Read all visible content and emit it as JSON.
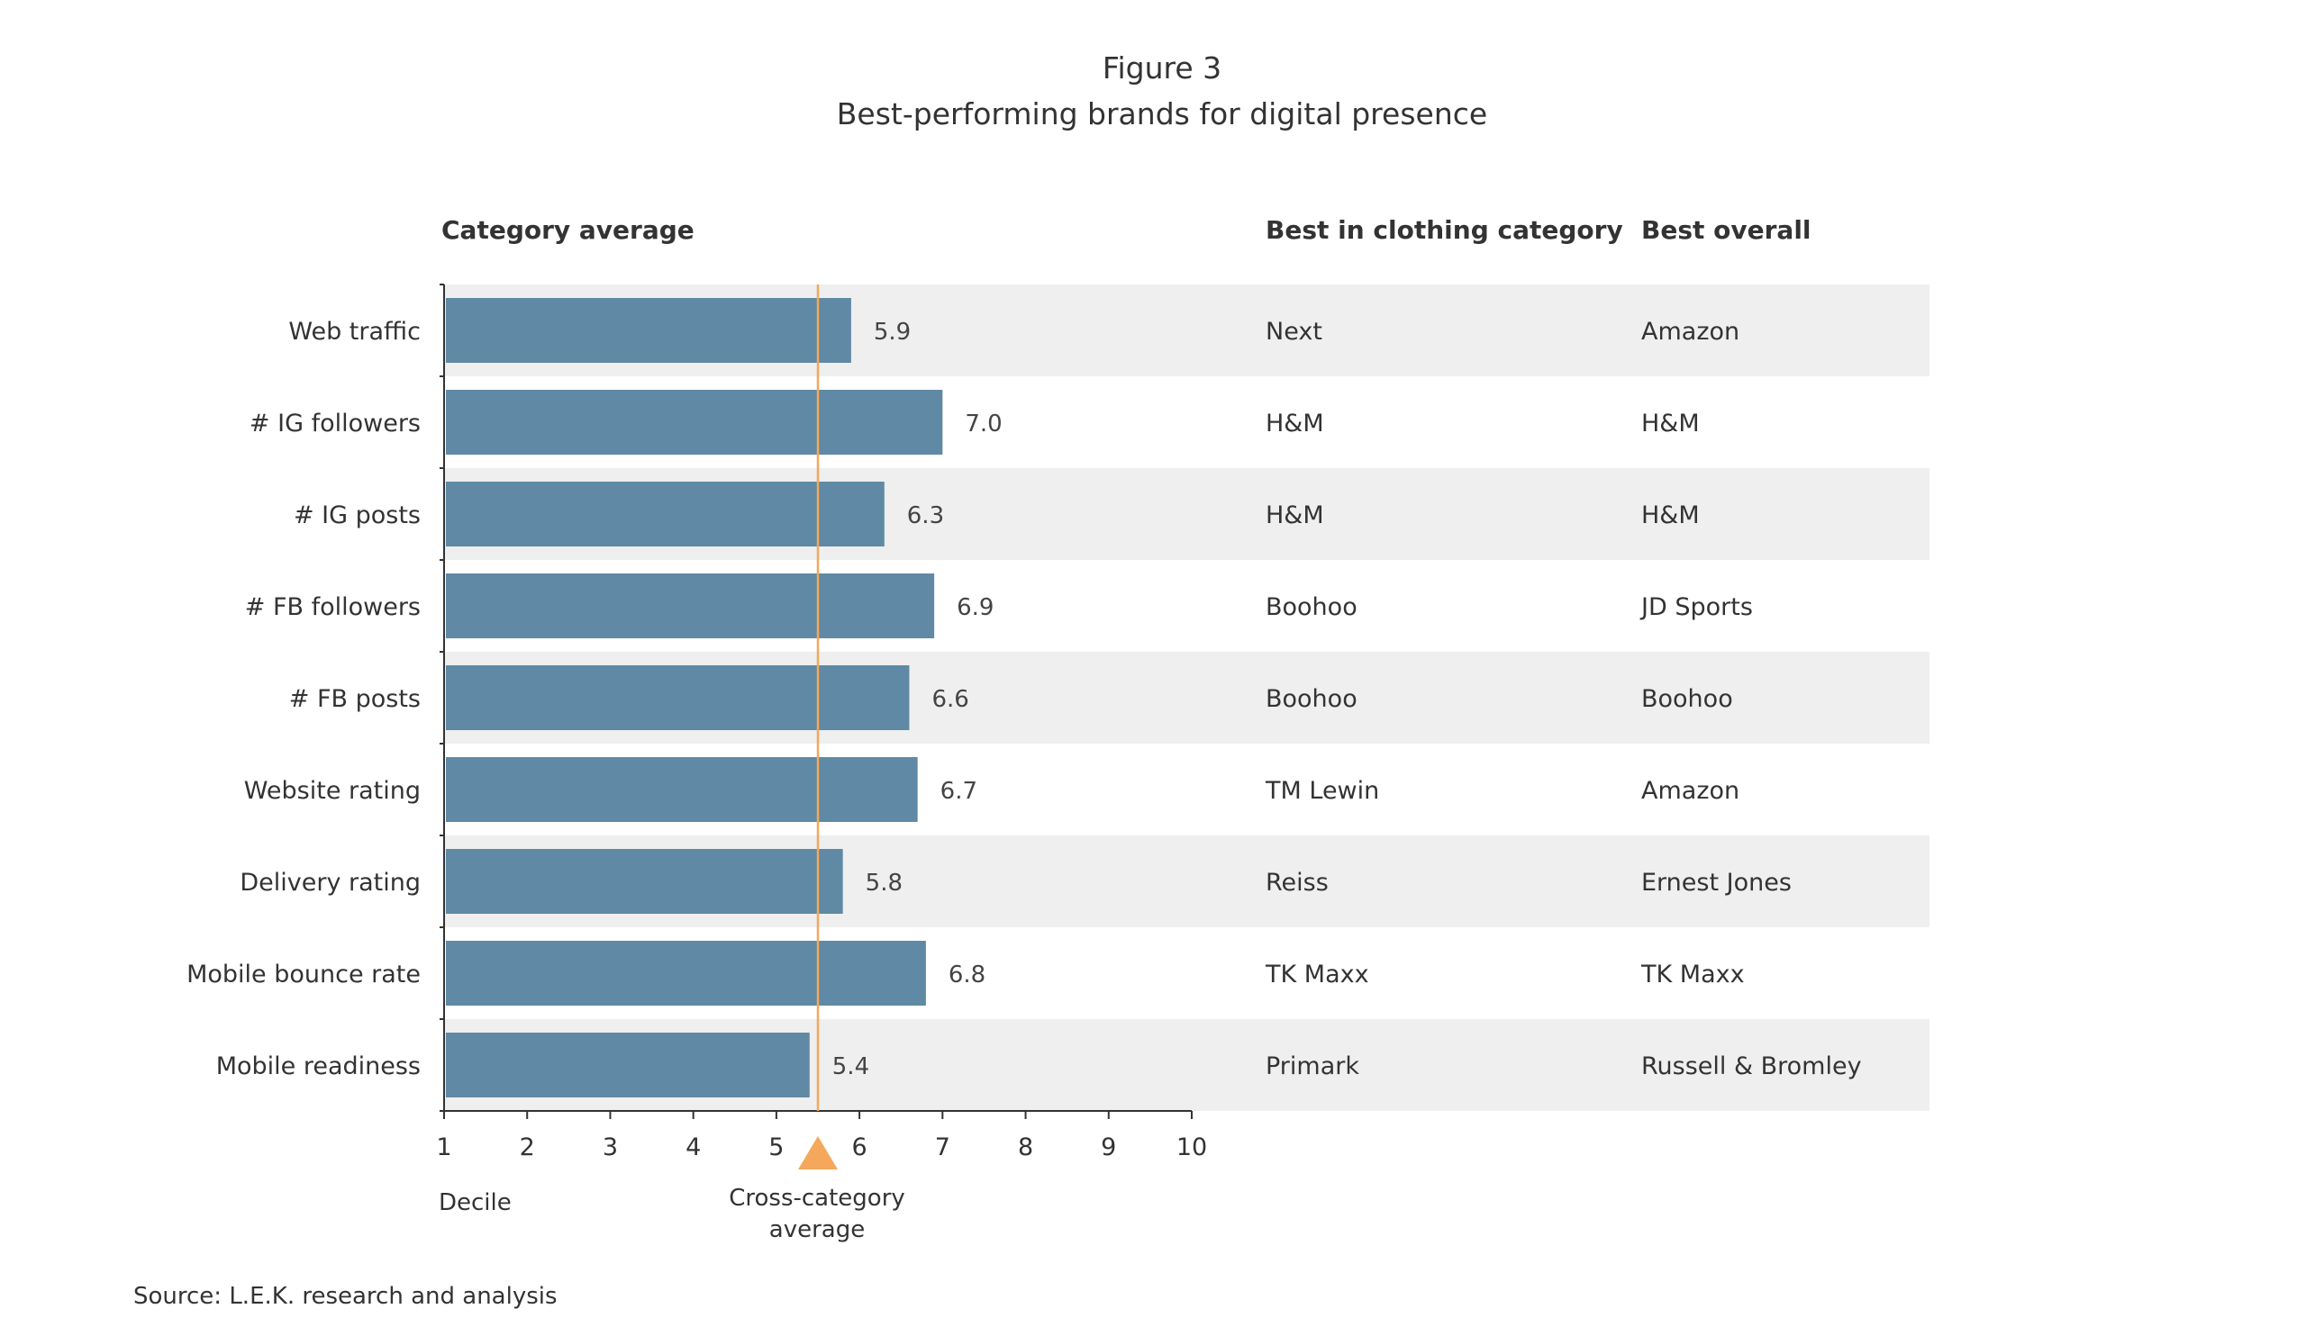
{
  "figure": {
    "label": "Figure 3",
    "title": "Best-performing brands for digital presence"
  },
  "columns": {
    "category_average": "Category average",
    "best_in_category": "Best in clothing category",
    "best_overall": "Best overall"
  },
  "chart_data": {
    "type": "bar",
    "orientation": "horizontal",
    "categories": [
      "Web traffic",
      "# IG followers",
      "# IG posts",
      "# FB followers",
      "# FB posts",
      "Website rating",
      "Delivery rating",
      "Mobile bounce rate",
      "Mobile readiness"
    ],
    "values": [
      5.9,
      7.0,
      6.3,
      6.9,
      6.6,
      6.7,
      5.8,
      6.8,
      5.4
    ],
    "value_labels": [
      "5.9",
      "7.0",
      "6.3",
      "6.9",
      "6.6",
      "6.7",
      "5.8",
      "6.8",
      "5.4"
    ],
    "xlim": [
      1,
      10
    ],
    "xticks": [
      "1",
      "2",
      "3",
      "4",
      "5",
      "6",
      "7",
      "8",
      "9",
      "10"
    ],
    "xlabel": "Decile",
    "reference_line": {
      "value": 5.5,
      "label_line1": "Cross-category",
      "label_line2": "average"
    },
    "grid": false
  },
  "table": {
    "best_in_category": [
      "Next",
      "H&M",
      "H&M",
      "Boohoo",
      "Boohoo",
      "TM Lewin",
      "Reiss",
      "TK Maxx",
      "Primark"
    ],
    "best_overall": [
      "Amazon",
      "H&M",
      "H&M",
      "JD Sports",
      "Boohoo",
      "Amazon",
      "Ernest Jones",
      "TK Maxx",
      "Russell & Bromley"
    ]
  },
  "source": "Source: L.E.K. research and analysis",
  "colors": {
    "bar": "#5f89a4",
    "reference": "#f5a85b",
    "stripe": "#efefef",
    "axis": "#333333",
    "text": "#333333"
  }
}
